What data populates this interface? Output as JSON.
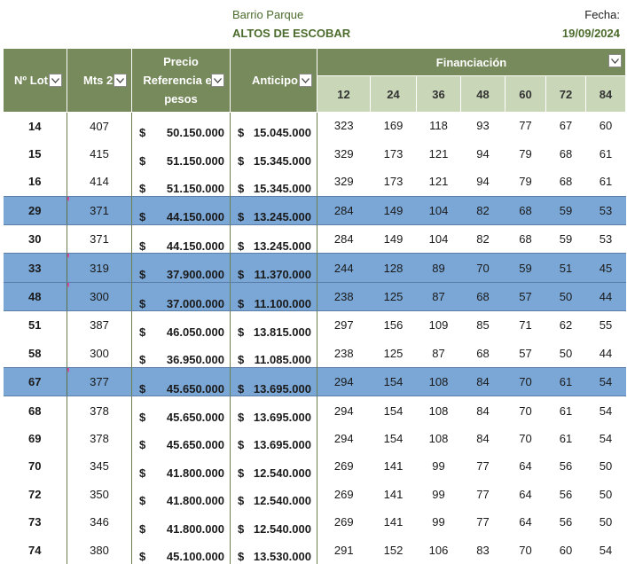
{
  "header": {
    "barrio": "Barrio Parque",
    "proyecto": "ALTOS DE ESCOBAR",
    "fecha_label": "Fecha:",
    "fecha_value": "19/09/2024"
  },
  "columns": {
    "lote": "Nº Lot",
    "mts": "Mts 2",
    "precio": "Precio Referencia en pesos",
    "anticipo": "Anticipo",
    "financiacion": "Financiación",
    "plazos": [
      "12",
      "24",
      "36",
      "48",
      "60",
      "72",
      "84"
    ]
  },
  "currency_symbol": "$",
  "colors": {
    "header_green": "#778a5c",
    "sub_header": "#c9d6b8",
    "highlight_blue": "#7ba7d6",
    "title_green": "#4b6b2c"
  },
  "rows": [
    {
      "lote": "14",
      "mts": "407",
      "precio": "50.150.000",
      "anticipo": "15.045.000",
      "cuotas": [
        "323",
        "169",
        "118",
        "93",
        "77",
        "67",
        "60"
      ],
      "highlight": false
    },
    {
      "lote": "15",
      "mts": "415",
      "precio": "51.150.000",
      "anticipo": "15.345.000",
      "cuotas": [
        "329",
        "173",
        "121",
        "94",
        "79",
        "68",
        "61"
      ],
      "highlight": false
    },
    {
      "lote": "16",
      "mts": "414",
      "precio": "51.150.000",
      "anticipo": "15.345.000",
      "cuotas": [
        "329",
        "173",
        "121",
        "94",
        "79",
        "68",
        "61"
      ],
      "highlight": false
    },
    {
      "lote": "29",
      "mts": "371",
      "precio": "44.150.000",
      "anticipo": "13.245.000",
      "cuotas": [
        "284",
        "149",
        "104",
        "82",
        "68",
        "59",
        "53"
      ],
      "highlight": true
    },
    {
      "lote": "30",
      "mts": "371",
      "precio": "44.150.000",
      "anticipo": "13.245.000",
      "cuotas": [
        "284",
        "149",
        "104",
        "82",
        "68",
        "59",
        "53"
      ],
      "highlight": false
    },
    {
      "lote": "33",
      "mts": "319",
      "precio": "37.900.000",
      "anticipo": "11.370.000",
      "cuotas": [
        "244",
        "128",
        "89",
        "70",
        "59",
        "51",
        "45"
      ],
      "highlight": true
    },
    {
      "lote": "48",
      "mts": "300",
      "precio": "37.000.000",
      "anticipo": "11.100.000",
      "cuotas": [
        "238",
        "125",
        "87",
        "68",
        "57",
        "50",
        "44"
      ],
      "highlight": true
    },
    {
      "lote": "51",
      "mts": "387",
      "precio": "46.050.000",
      "anticipo": "13.815.000",
      "cuotas": [
        "297",
        "156",
        "109",
        "85",
        "71",
        "62",
        "55"
      ],
      "highlight": false
    },
    {
      "lote": "58",
      "mts": "300",
      "precio": "36.950.000",
      "anticipo": "11.085.000",
      "cuotas": [
        "238",
        "125",
        "87",
        "68",
        "57",
        "50",
        "44"
      ],
      "highlight": false
    },
    {
      "lote": "67",
      "mts": "377",
      "precio": "45.650.000",
      "anticipo": "13.695.000",
      "cuotas": [
        "294",
        "154",
        "108",
        "84",
        "70",
        "61",
        "54"
      ],
      "highlight": true
    },
    {
      "lote": "68",
      "mts": "378",
      "precio": "45.650.000",
      "anticipo": "13.695.000",
      "cuotas": [
        "294",
        "154",
        "108",
        "84",
        "70",
        "61",
        "54"
      ],
      "highlight": false
    },
    {
      "lote": "69",
      "mts": "378",
      "precio": "45.650.000",
      "anticipo": "13.695.000",
      "cuotas": [
        "294",
        "154",
        "108",
        "84",
        "70",
        "61",
        "54"
      ],
      "highlight": false
    },
    {
      "lote": "70",
      "mts": "345",
      "precio": "41.800.000",
      "anticipo": "12.540.000",
      "cuotas": [
        "269",
        "141",
        "99",
        "77",
        "64",
        "56",
        "50"
      ],
      "highlight": false
    },
    {
      "lote": "72",
      "mts": "350",
      "precio": "41.800.000",
      "anticipo": "12.540.000",
      "cuotas": [
        "269",
        "141",
        "99",
        "77",
        "64",
        "56",
        "50"
      ],
      "highlight": false
    },
    {
      "lote": "73",
      "mts": "346",
      "precio": "41.800.000",
      "anticipo": "12.540.000",
      "cuotas": [
        "269",
        "141",
        "99",
        "77",
        "64",
        "56",
        "50"
      ],
      "highlight": false
    },
    {
      "lote": "74",
      "mts": "380",
      "precio": "45.100.000",
      "anticipo": "13.530.000",
      "cuotas": [
        "291",
        "152",
        "106",
        "83",
        "70",
        "60",
        "54"
      ],
      "highlight": false
    }
  ]
}
